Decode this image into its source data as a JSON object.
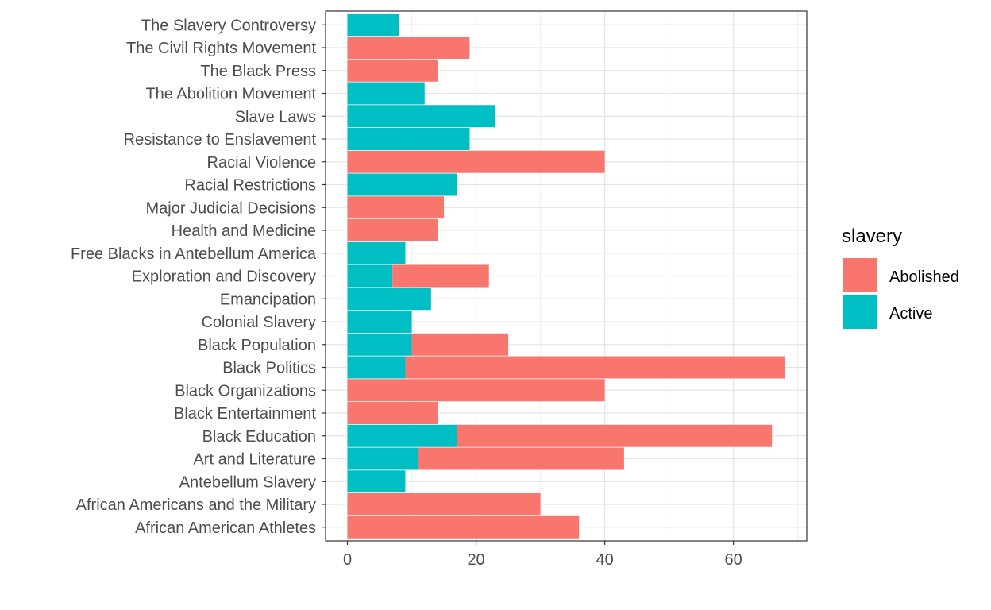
{
  "chart_data": {
    "type": "bar",
    "orientation": "horizontal",
    "stacked": true,
    "title": "",
    "xlabel": "",
    "ylabel": "",
    "xlim": [
      -3.4,
      71.4
    ],
    "x_ticks": [
      0,
      20,
      40,
      60
    ],
    "grid": true,
    "legend": {
      "title": "slavery",
      "position": "right"
    },
    "categories": [
      "African American Athletes",
      "African Americans and the Military",
      "Antebellum Slavery",
      "Art and Literature",
      "Black Education",
      "Black Entertainment",
      "Black Organizations",
      "Black Politics",
      "Black Population",
      "Colonial Slavery",
      "Emancipation",
      "Exploration and Discovery",
      "Free Blacks in Antebellum America",
      "Health and Medicine",
      "Major Judicial Decisions",
      "Racial Restrictions",
      "Racial Violence",
      "Resistance to Enslavement",
      "Slave Laws",
      "The Abolition Movement",
      "The Black Press",
      "The Civil Rights Movement",
      "The Slavery Controversy"
    ],
    "series": [
      {
        "name": "Active",
        "color": "#00BFC4",
        "values": [
          0,
          0,
          9,
          11,
          17,
          0,
          0,
          9,
          10,
          10,
          13,
          7,
          9,
          0,
          0,
          17,
          0,
          19,
          23,
          12,
          0,
          0,
          8
        ]
      },
      {
        "name": "Abolished",
        "color": "#F8766D",
        "values": [
          36,
          30,
          0,
          32,
          49,
          14,
          40,
          59,
          15,
          0,
          0,
          15,
          0,
          14,
          15,
          0,
          40,
          0,
          0,
          0,
          14,
          19,
          0
        ]
      }
    ],
    "legend_order": [
      "Abolished",
      "Active"
    ]
  }
}
